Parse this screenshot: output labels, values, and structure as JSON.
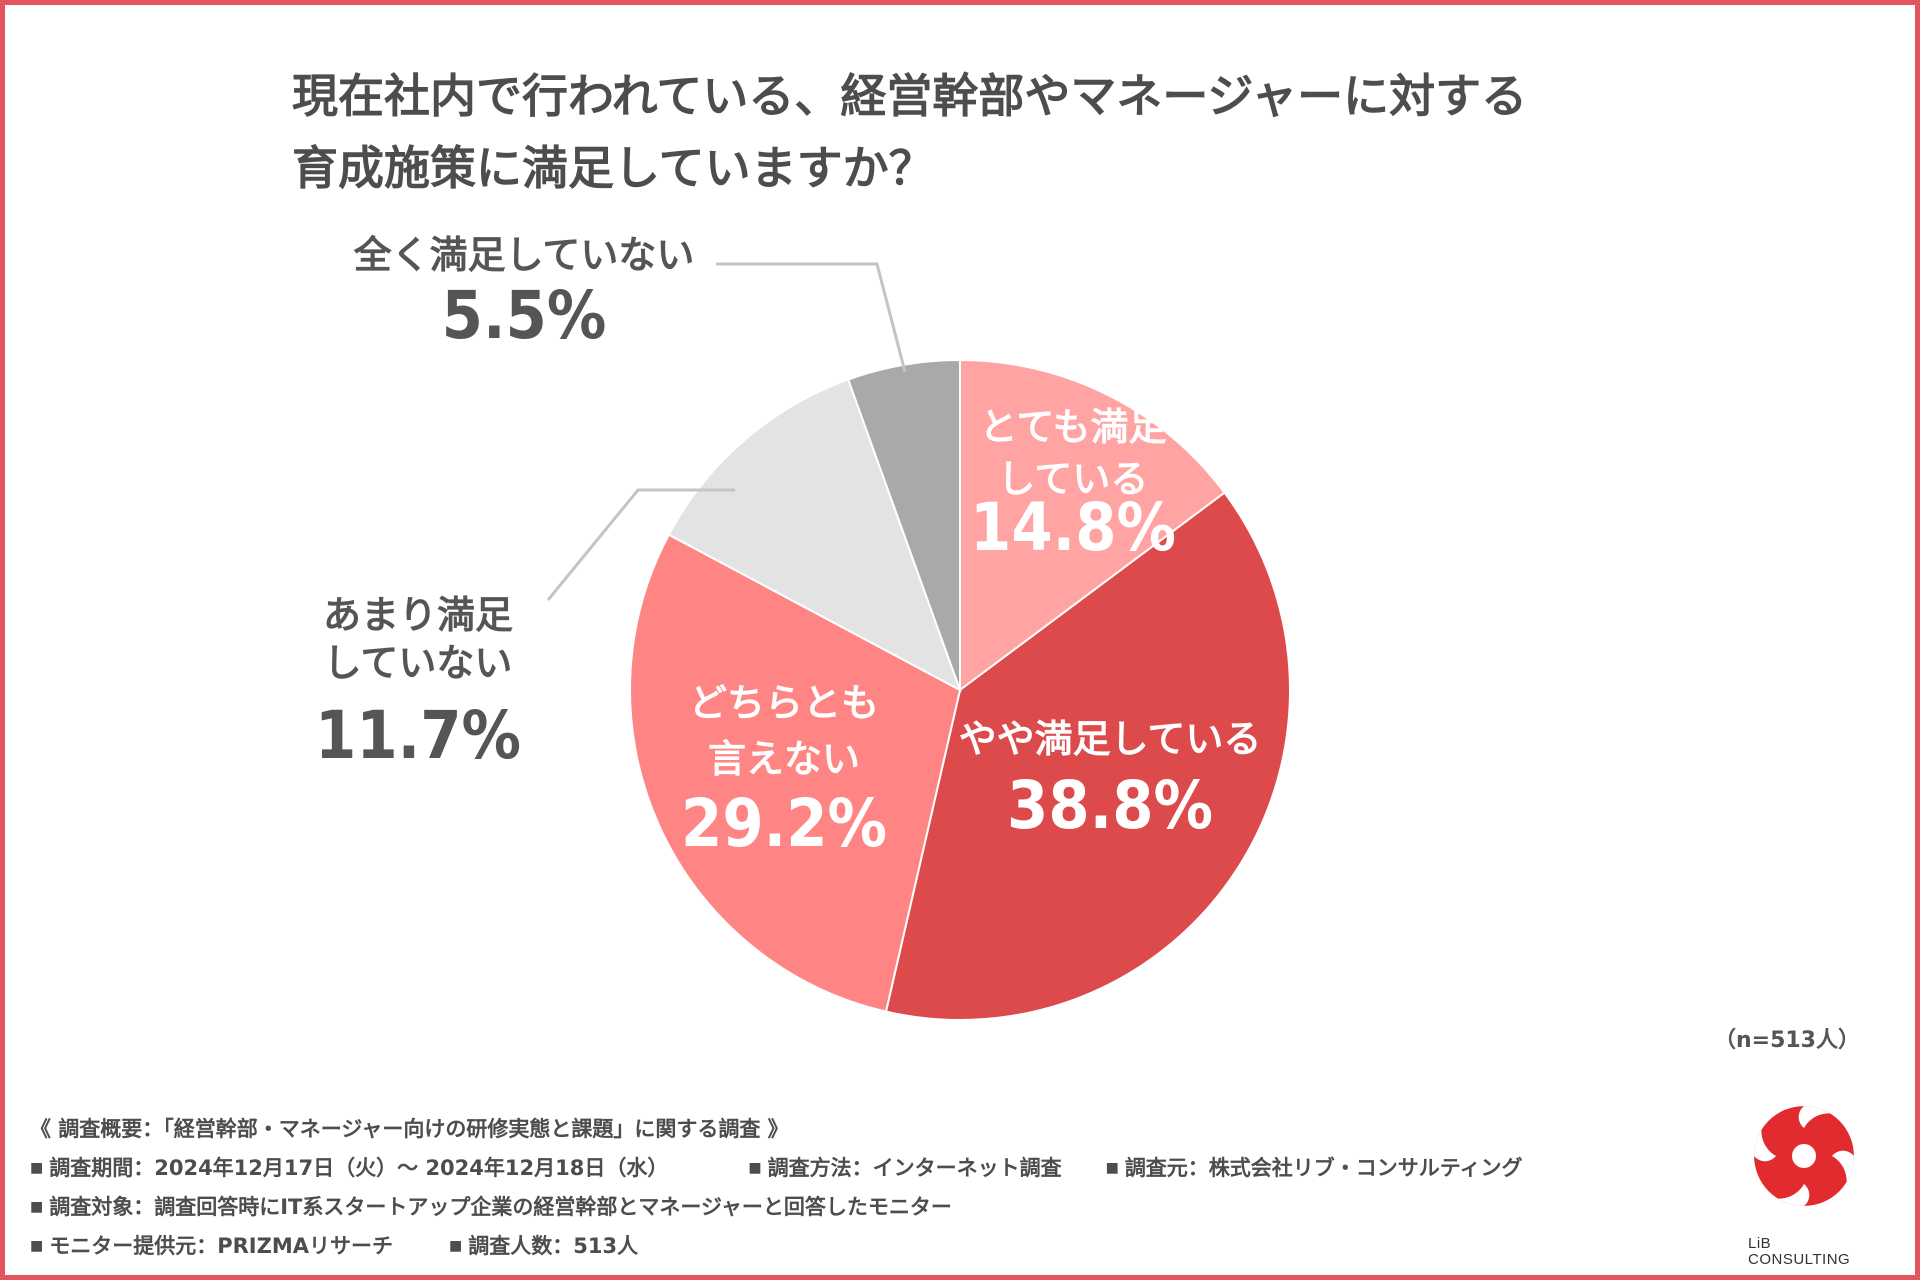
{
  "title": {
    "line1": "現在社内で行われている、経営幹部やマネージャーに対する",
    "line2": "育成施策に満足していますか？"
  },
  "colors": {
    "very_satisfied": "#ffa3a3",
    "somewhat_satisfied": "#dc4a4c",
    "neutral": "#ff8585",
    "not_very_satisfied": "#e3e3e3",
    "not_at_all_satisfied": "#a9a9a9",
    "frame": "#e2555a"
  },
  "chart_data": {
    "type": "pie",
    "title": "現在社内で行われている、経営幹部やマネージャーに対する育成施策に満足していますか？",
    "slices": [
      {
        "label_lines": [
          "とても満足",
          "している"
        ],
        "value": 14.8,
        "value_text": "14.8%"
      },
      {
        "label_lines": [
          "やや満足している"
        ],
        "value": 38.8,
        "value_text": "38.8%"
      },
      {
        "label_lines": [
          "どちらとも",
          "言えない"
        ],
        "value": 29.2,
        "value_text": "29.2%"
      },
      {
        "label_lines": [
          "あまり満足",
          "していない"
        ],
        "value": 11.7,
        "value_text": "11.7%"
      },
      {
        "label_lines": [
          "全く満足していない"
        ],
        "value": 5.5,
        "value_text": "5.5%"
      }
    ],
    "start": "12 o'clock, clockwise"
  },
  "sample_size": "（n=513人）",
  "footer": {
    "overview": "《 調査概要：「経営幹部・マネージャー向けの研修実態と課題」に関する調査 》",
    "bullet": "■",
    "period": "調査期間：2024年12月17日（火）～ 2024年12月18日（水）",
    "method": "調査方法：インターネット調査",
    "source": "調査元：株式会社リブ・コンサルティング",
    "target": "調査対象：調査回答時にIT系スタートアップ企業の経営幹部とマネージャーと回答したモニター",
    "provider": "モニター提供元：PRIZMAリサーチ",
    "count": "調査人数：513人"
  },
  "logo": {
    "line1": "LiB",
    "line2": "CONSULTING"
  }
}
